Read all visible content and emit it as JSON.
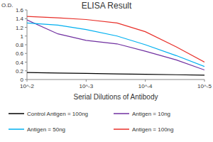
{
  "chart_data": {
    "type": "line",
    "title": "ELISA Result",
    "y_label": "O.D.",
    "x_label": "Serial Dilutions of Antibody",
    "log": "x",
    "x": [
      0.01,
      0.003,
      0.001,
      0.0003,
      0.0001,
      3e-05,
      1e-05
    ],
    "xlim": [
      0.01,
      1e-05
    ],
    "xticks": [
      {
        "value": 0.01,
        "label": "10^-2"
      },
      {
        "value": 0.001,
        "label": "10^-3"
      },
      {
        "value": 0.0001,
        "label": "10^-4"
      },
      {
        "value": 1e-05,
        "label": "10^-5"
      }
    ],
    "ylim": [
      0,
      1.6
    ],
    "yticks": [
      0,
      0.2,
      0.4,
      0.6,
      0.8,
      1,
      1.2,
      1.4,
      1.6
    ],
    "grid": false,
    "legend": "bottom",
    "series": [
      {
        "name": "Control Antigen = 100ng",
        "color": "#000000",
        "values": [
          0.16,
          0.15,
          0.14,
          0.13,
          0.12,
          0.11,
          0.1
        ]
      },
      {
        "name": "Antigen = 10ng",
        "color": "#7030a0",
        "values": [
          1.37,
          1.05,
          0.9,
          0.82,
          0.65,
          0.45,
          0.22
        ]
      },
      {
        "name": "Antigen = 50ng",
        "color": "#00b0f0",
        "values": [
          1.3,
          1.25,
          1.15,
          1.0,
          0.8,
          0.55,
          0.3
        ]
      },
      {
        "name": "Antigen = 100ng",
        "color": "#e8302a",
        "values": [
          1.45,
          1.42,
          1.38,
          1.3,
          1.1,
          0.75,
          0.4
        ]
      }
    ]
  }
}
